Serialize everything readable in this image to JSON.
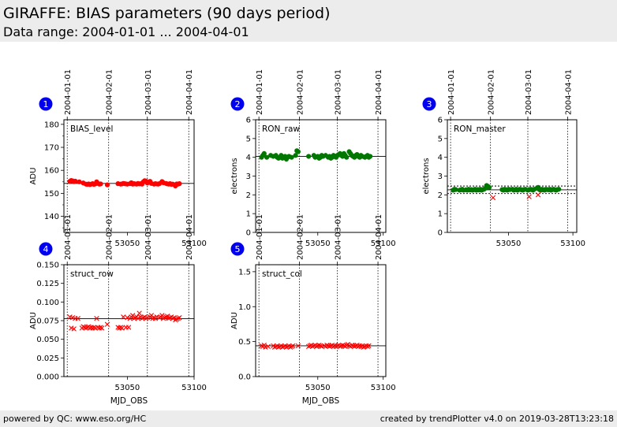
{
  "header": {
    "title": "GIRAFFE: BIAS parameters (90 days period)",
    "subtitle": "Data range: 2004-01-01 ... 2004-04-01"
  },
  "footer": {
    "left": "powered by QC: www.eso.org/HC",
    "right": "created by trendPlotter v4.0 on 2019-03-28T13:23:18"
  },
  "colors": {
    "red": "#ff0000",
    "green": "#007700",
    "badge": "#0000ee",
    "header_bg": "#ececec"
  },
  "chart_data": [
    {
      "panel": "1",
      "type": "scatter",
      "label": "BIAS_level",
      "ylabel": "ADU",
      "xlabel": "",
      "xlim": [
        53002.5,
        53100
      ],
      "ylim": [
        133,
        182
      ],
      "yticks": [
        140,
        150,
        160,
        170,
        180
      ],
      "xticks": [
        53050,
        53100
      ],
      "xtick_labels": [
        "53050",
        "53100"
      ],
      "date_ticks": [
        53005,
        53036,
        53065,
        53096
      ],
      "date_labels": [
        "2004-01-01",
        "2004-02-01",
        "2004-03-01",
        "2004-04-01"
      ],
      "hlines": [
        {
          "y": 154.3,
          "style": "solid"
        }
      ],
      "series": [
        {
          "marker": "dot",
          "color": "#ff0000",
          "x": [
            53007,
            53008,
            53009,
            53010,
            53011,
            53014,
            53017,
            53019,
            53020,
            53021,
            53022,
            53023,
            53024,
            53025,
            53026,
            53027,
            53028,
            53029,
            53030,
            53035,
            53043,
            53045,
            53046,
            53047,
            53048,
            53049,
            53050,
            53052,
            53053,
            53054,
            53055,
            53056,
            53057,
            53058,
            53059,
            53060,
            53061,
            53062,
            53063,
            53064,
            53065,
            53067,
            53068,
            53070,
            53071,
            53072,
            53073,
            53074,
            53076,
            53077,
            53079,
            53080,
            53081,
            53082,
            53083,
            53084,
            53086,
            53087,
            53088,
            53089
          ],
          "y": [
            155.2,
            155.6,
            155.4,
            155.1,
            155.3,
            155.0,
            154.5,
            154.0,
            153.9,
            154.1,
            153.8,
            154.0,
            154.2,
            153.9,
            154.1,
            155.0,
            154.3,
            154.0,
            154.1,
            153.7,
            154.2,
            154.0,
            154.1,
            154.3,
            154.2,
            154.1,
            154.0,
            154.2,
            154.6,
            154.0,
            154.2,
            154.1,
            154.0,
            154.3,
            154.1,
            154.2,
            154.0,
            155.0,
            155.5,
            155.3,
            154.5,
            155.2,
            154.3,
            154.0,
            154.2,
            154.1,
            154.0,
            154.2,
            155.1,
            154.6,
            154.3,
            154.1,
            154.0,
            154.2,
            153.9,
            154.0,
            153.2,
            154.1,
            154.0,
            154.2
          ]
        }
      ]
    },
    {
      "panel": "2",
      "type": "scatter",
      "label": "RON_raw",
      "ylabel": "electrons",
      "xlabel": "",
      "xlim": [
        53002.5,
        53102
      ],
      "ylim": [
        0,
        6
      ],
      "yticks": [
        0,
        1,
        2,
        3,
        4,
        5,
        6
      ],
      "xticks": [
        53050,
        53100
      ],
      "xtick_labels": [
        "53050",
        "53100"
      ],
      "date_ticks": [
        53005,
        53036,
        53065,
        53096
      ],
      "date_labels": [
        "2004-01-01",
        "2004-02-01",
        "2004-03-01",
        "2004-04-01"
      ],
      "hlines": [
        {
          "y": 4.05,
          "style": "solid"
        }
      ],
      "series": [
        {
          "marker": "dot",
          "color": "#007700",
          "x": [
            53007,
            53008,
            53009,
            53011,
            53014,
            53016,
            53018,
            53019,
            53020,
            53021,
            53022,
            53023,
            53024,
            53025,
            53026,
            53027,
            53028,
            53030,
            53033,
            53034,
            53035,
            53043,
            53047,
            53048,
            53050,
            53051,
            53052,
            53053,
            53054,
            53056,
            53058,
            53059,
            53060,
            53061,
            53062,
            53063,
            53064,
            53065,
            53066,
            53067,
            53068,
            53069,
            53070,
            53071,
            53072,
            53074,
            53075,
            53076,
            53077,
            53078,
            53079,
            53080,
            53081,
            53082,
            53083,
            53084,
            53086,
            53087,
            53088,
            53089,
            53090
          ],
          "y": [
            4.0,
            4.1,
            4.2,
            4.0,
            4.1,
            4.05,
            4.1,
            4.0,
            3.95,
            4.0,
            4.1,
            3.95,
            4.0,
            4.05,
            3.9,
            4.0,
            4.05,
            4.0,
            4.1,
            4.35,
            4.3,
            4.05,
            4.1,
            4.0,
            4.05,
            3.95,
            4.0,
            4.1,
            4.05,
            4.1,
            4.0,
            4.05,
            3.95,
            4.0,
            4.1,
            4.05,
            4.0,
            4.1,
            4.15,
            4.2,
            4.1,
            4.05,
            4.2,
            4.1,
            4.0,
            4.3,
            4.2,
            4.1,
            4.05,
            4.0,
            4.1,
            4.15,
            4.05,
            4.0,
            4.1,
            4.05,
            4.0,
            4.05,
            4.1,
            4.0,
            4.05
          ]
        }
      ]
    },
    {
      "panel": "3",
      "type": "scatter",
      "label": "RON_master",
      "ylabel": "electrons",
      "xlabel": "",
      "xlim": [
        53002.5,
        53103
      ],
      "ylim": [
        0,
        6
      ],
      "yticks": [
        0,
        1,
        2,
        3,
        4,
        5,
        6
      ],
      "xticks": [
        53050,
        53100
      ],
      "xtick_labels": [
        "53050",
        "53100"
      ],
      "date_ticks": [
        53005,
        53036,
        53065,
        53096
      ],
      "date_labels": [
        "2004-01-01",
        "2004-02-01",
        "2004-03-01",
        "2004-04-01"
      ],
      "hlines": [
        {
          "y": 2.27,
          "style": "solid"
        },
        {
          "y": 2.47,
          "style": "dashed"
        },
        {
          "y": 2.07,
          "style": "dashed"
        }
      ],
      "series": [
        {
          "marker": "dot",
          "color": "#007700",
          "x": [
            53007,
            53008,
            53009,
            53012,
            53013,
            53014,
            53015,
            53017,
            53018,
            53019,
            53020,
            53021,
            53022,
            53023,
            53024,
            53025,
            53026,
            53027,
            53028,
            53029,
            53030,
            53031,
            53032,
            53033,
            53034,
            53035,
            53045,
            53046,
            53047,
            53048,
            53049,
            53050,
            53051,
            53053,
            53054,
            53055,
            53056,
            53057,
            53058,
            53059,
            53060,
            53061,
            53062,
            53063,
            53065,
            53066,
            53067,
            53068,
            53069,
            53070,
            53072,
            53073,
            53074,
            53075,
            53076,
            53077,
            53078,
            53079,
            53080,
            53081,
            53082,
            53083,
            53084,
            53085,
            53086,
            53087,
            53088,
            53089
          ],
          "y": [
            2.25,
            2.3,
            2.28,
            2.25,
            2.27,
            2.3,
            2.25,
            2.27,
            2.25,
            2.3,
            2.26,
            2.28,
            2.25,
            2.27,
            2.3,
            2.25,
            2.28,
            2.26,
            2.3,
            2.25,
            2.28,
            2.3,
            2.35,
            2.5,
            2.45,
            2.4,
            2.28,
            2.25,
            2.3,
            2.27,
            2.25,
            2.3,
            2.28,
            2.3,
            2.25,
            2.27,
            2.3,
            2.25,
            2.28,
            2.3,
            2.27,
            2.25,
            2.28,
            2.3,
            2.25,
            2.27,
            2.3,
            2.28,
            2.25,
            2.3,
            2.35,
            2.4,
            2.28,
            2.25,
            2.3,
            2.27,
            2.25,
            2.3,
            2.28,
            2.27,
            2.3,
            2.25,
            2.28,
            2.3,
            2.27,
            2.25,
            2.28,
            2.3
          ]
        },
        {
          "marker": "x",
          "color": "#ff0000",
          "x": [
            53038,
            53066,
            53073
          ],
          "y": [
            1.85,
            1.9,
            2.0
          ]
        }
      ]
    },
    {
      "panel": "4",
      "type": "scatter",
      "label": "struct_row",
      "ylabel": "ADU",
      "xlabel": "MJD_OBS",
      "xlim": [
        53002.5,
        53100
      ],
      "ylim": [
        0,
        0.15
      ],
      "yticks": [
        0.0,
        0.025,
        0.05,
        0.075,
        0.1,
        0.125,
        0.15
      ],
      "ytick_labels": [
        "0.000",
        "0.025",
        "0.050",
        "0.075",
        "0.100",
        "0.125",
        "0.150"
      ],
      "xticks": [
        53050,
        53100
      ],
      "xtick_labels": [
        "53050",
        "53100"
      ],
      "date_ticks": [
        53005,
        53036,
        53065,
        53096
      ],
      "date_labels": [
        "2004-01-01",
        "2004-02-01",
        "2004-03-01",
        "2004-04-01"
      ],
      "hlines": [
        {
          "y": 0.0777,
          "style": "solid"
        }
      ],
      "series": [
        {
          "marker": "x",
          "color": "#ff0000",
          "x": [
            53007,
            53008,
            53009,
            53010,
            53011,
            53013,
            53016,
            53017,
            53018,
            53019,
            53020,
            53021,
            53022,
            53023,
            53024,
            53025,
            53026,
            53027,
            53028,
            53029,
            53030,
            53031,
            53035,
            53043,
            53044,
            53045,
            53046,
            53047,
            53049,
            53050,
            53051,
            53052,
            53053,
            53054,
            53055,
            53056,
            53057,
            53058,
            53059,
            53060,
            53061,
            53062,
            53063,
            53064,
            53065,
            53067,
            53068,
            53069,
            53070,
            53071,
            53072,
            53074,
            53075,
            53076,
            53077,
            53078,
            53079,
            53080,
            53081,
            53082,
            53083,
            53084,
            53085,
            53086,
            53087,
            53088,
            53089
          ],
          "y": [
            0.08,
            0.065,
            0.079,
            0.064,
            0.078,
            0.078,
            0.065,
            0.067,
            0.066,
            0.065,
            0.066,
            0.067,
            0.065,
            0.066,
            0.065,
            0.066,
            0.065,
            0.078,
            0.066,
            0.065,
            0.066,
            0.065,
            0.07,
            0.066,
            0.065,
            0.066,
            0.065,
            0.08,
            0.066,
            0.079,
            0.066,
            0.078,
            0.08,
            0.082,
            0.078,
            0.079,
            0.08,
            0.078,
            0.085,
            0.08,
            0.078,
            0.079,
            0.08,
            0.078,
            0.079,
            0.08,
            0.082,
            0.078,
            0.079,
            0.078,
            0.08,
            0.079,
            0.08,
            0.082,
            0.078,
            0.079,
            0.08,
            0.081,
            0.078,
            0.079,
            0.08,
            0.078,
            0.079,
            0.076,
            0.077,
            0.078,
            0.079
          ]
        }
      ]
    },
    {
      "panel": "5",
      "type": "scatter",
      "label": "struct_col",
      "ylabel": "ADU",
      "xlabel": "MJD_OBS",
      "xlim": [
        53002.5,
        53102
      ],
      "ylim": [
        0,
        1.6
      ],
      "yticks": [
        0.0,
        0.5,
        1.0,
        1.5
      ],
      "ytick_labels": [
        "0.0",
        "0.5",
        "1.0",
        "1.5"
      ],
      "xticks": [
        53050,
        53100
      ],
      "xtick_labels": [
        "53050",
        "53100"
      ],
      "date_ticks": [
        53005,
        53036,
        53065,
        53096
      ],
      "date_labels": [
        "2004-01-01",
        "2004-02-01",
        "2004-03-01",
        "2004-04-01"
      ],
      "hlines": [
        {
          "y": 0.44,
          "style": "solid"
        }
      ],
      "series": [
        {
          "marker": "x",
          "color": "#ff0000",
          "x": [
            53007,
            53008,
            53009,
            53010,
            53012,
            53016,
            53017,
            53018,
            53019,
            53020,
            53021,
            53022,
            53023,
            53024,
            53025,
            53026,
            53027,
            53028,
            53029,
            53030,
            53031,
            53035,
            53043,
            53044,
            53045,
            53046,
            53047,
            53048,
            53049,
            53050,
            53051,
            53052,
            53053,
            53055,
            53056,
            53057,
            53058,
            53059,
            53060,
            53061,
            53062,
            53063,
            53064,
            53065,
            53066,
            53067,
            53068,
            53069,
            53070,
            53071,
            53072,
            53073,
            53074,
            53075,
            53076,
            53077,
            53078,
            53079,
            53080,
            53081,
            53082,
            53083,
            53084,
            53085,
            53086,
            53087,
            53088,
            53089
          ],
          "y": [
            0.44,
            0.43,
            0.45,
            0.42,
            0.43,
            0.44,
            0.42,
            0.43,
            0.44,
            0.42,
            0.43,
            0.44,
            0.42,
            0.43,
            0.44,
            0.42,
            0.43,
            0.44,
            0.42,
            0.43,
            0.44,
            0.44,
            0.43,
            0.44,
            0.45,
            0.43,
            0.44,
            0.45,
            0.43,
            0.44,
            0.45,
            0.44,
            0.43,
            0.44,
            0.43,
            0.45,
            0.44,
            0.43,
            0.44,
            0.45,
            0.43,
            0.44,
            0.43,
            0.44,
            0.45,
            0.43,
            0.44,
            0.45,
            0.44,
            0.43,
            0.45,
            0.46,
            0.44,
            0.43,
            0.45,
            0.44,
            0.43,
            0.44,
            0.45,
            0.43,
            0.44,
            0.43,
            0.44,
            0.42,
            0.43,
            0.44,
            0.43,
            0.44
          ]
        }
      ]
    }
  ]
}
